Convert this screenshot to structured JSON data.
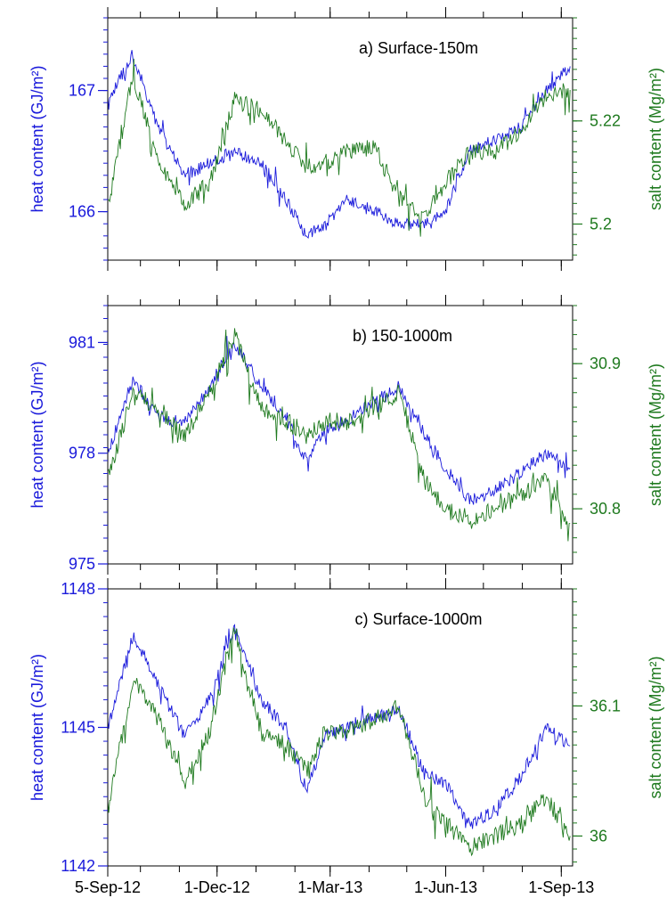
{
  "colors": {
    "heat": "#1a1adb",
    "salt": "#1f7a1f",
    "axis": "#000000"
  },
  "x_axis": {
    "tick_labels": [
      "5-Sep-12",
      "1-Dec-12",
      "1-Mar-13",
      "1-Jun-13",
      "1-Sep-13"
    ],
    "range": [
      "2012-09-05",
      "2013-09-10"
    ]
  },
  "chart_data": [
    {
      "type": "line",
      "title": "a) Surface-150m",
      "ylabel_left": "heat content (GJ/m²)",
      "ylabel_right": "salt content (Mg/m²)",
      "left_ticks": [
        "166",
        "167"
      ],
      "right_ticks": [
        "5.2",
        "5.22"
      ],
      "ylim_left": [
        165.6,
        167.6
      ],
      "ylim_right": [
        5.193,
        5.24
      ],
      "series": [
        {
          "axis": "left",
          "x": [
            "2012-09-05",
            "2012-09-25",
            "2012-10-15",
            "2012-11-05",
            "2012-11-25",
            "2012-12-15",
            "2013-01-05",
            "2013-01-25",
            "2013-02-10",
            "2013-02-25",
            "2013-03-15",
            "2013-04-05",
            "2013-04-25",
            "2013-05-15",
            "2013-06-01",
            "2013-06-20",
            "2013-07-10",
            "2013-08-01",
            "2013-08-20",
            "2013-09-08"
          ],
          "y": [
            166.9,
            167.3,
            166.7,
            166.3,
            166.4,
            166.5,
            166.4,
            166.1,
            165.8,
            165.9,
            166.1,
            166.0,
            165.9,
            165.9,
            166.0,
            166.5,
            166.6,
            166.7,
            167.0,
            167.2
          ]
        },
        {
          "axis": "right",
          "x": [
            "2012-09-05",
            "2012-09-25",
            "2012-10-15",
            "2012-11-05",
            "2012-11-25",
            "2012-12-15",
            "2013-01-05",
            "2013-01-25",
            "2013-02-10",
            "2013-02-25",
            "2013-03-15",
            "2013-04-05",
            "2013-04-25",
            "2013-05-15",
            "2013-06-01",
            "2013-06-20",
            "2013-07-10",
            "2013-08-01",
            "2013-08-20",
            "2013-09-08"
          ],
          "y": [
            5.203,
            5.229,
            5.212,
            5.204,
            5.208,
            5.224,
            5.222,
            5.216,
            5.211,
            5.212,
            5.214,
            5.215,
            5.205,
            5.201,
            5.208,
            5.214,
            5.214,
            5.218,
            5.225,
            5.226
          ]
        }
      ]
    },
    {
      "type": "line",
      "title": "b) 150-1000m",
      "ylabel_left": "heat content (GJ/m²)",
      "ylabel_right": "salt content (Mg/m²)",
      "left_ticks": [
        "975",
        "978",
        "981"
      ],
      "right_ticks": [
        "30.8",
        "30.9"
      ],
      "ylim_left": [
        975,
        982
      ],
      "ylim_right": [
        30.762,
        30.94
      ],
      "series": [
        {
          "axis": "left",
          "x": [
            "2012-09-05",
            "2012-09-25",
            "2012-10-15",
            "2012-11-05",
            "2012-11-25",
            "2012-12-15",
            "2013-01-05",
            "2013-01-25",
            "2013-02-10",
            "2013-02-25",
            "2013-03-15",
            "2013-04-05",
            "2013-04-25",
            "2013-05-15",
            "2013-06-01",
            "2013-06-20",
            "2013-07-10",
            "2013-08-01",
            "2013-08-20",
            "2013-09-08"
          ],
          "y": [
            978.0,
            980.0,
            979.0,
            978.8,
            979.8,
            981.0,
            979.8,
            979.0,
            977.8,
            978.6,
            978.9,
            979.4,
            979.8,
            978.5,
            977.6,
            976.7,
            977.0,
            977.5,
            978.0,
            977.6
          ]
        },
        {
          "axis": "right",
          "x": [
            "2012-09-05",
            "2012-09-25",
            "2012-10-15",
            "2012-11-05",
            "2012-11-25",
            "2012-12-15",
            "2013-01-05",
            "2013-01-25",
            "2013-02-10",
            "2013-02-25",
            "2013-03-15",
            "2013-04-05",
            "2013-04-25",
            "2013-05-15",
            "2013-06-01",
            "2013-06-20",
            "2013-07-10",
            "2013-08-01",
            "2013-08-20",
            "2013-09-08"
          ],
          "y": [
            30.82,
            30.88,
            30.87,
            30.85,
            30.88,
            30.92,
            30.87,
            30.86,
            30.85,
            30.86,
            30.86,
            30.87,
            30.88,
            30.82,
            30.8,
            30.79,
            30.8,
            30.81,
            30.82,
            30.79
          ]
        }
      ]
    },
    {
      "type": "line",
      "title": "c) Surface-1000m",
      "ylabel_left": "heat content (GJ/m²)",
      "ylabel_right": "salt content (Mg/m²)",
      "left_ticks": [
        "1142",
        "1145",
        "1148"
      ],
      "right_ticks": [
        "36",
        "36.1"
      ],
      "ylim_left": [
        1142,
        1148
      ],
      "ylim_right": [
        35.977,
        36.19
      ],
      "series": [
        {
          "axis": "left",
          "x": [
            "2012-09-05",
            "2012-09-25",
            "2012-10-15",
            "2012-11-05",
            "2012-11-25",
            "2012-12-15",
            "2013-01-05",
            "2013-01-25",
            "2013-02-10",
            "2013-02-25",
            "2013-03-15",
            "2013-04-05",
            "2013-04-25",
            "2013-05-15",
            "2013-06-01",
            "2013-06-20",
            "2013-07-10",
            "2013-08-01",
            "2013-08-20",
            "2013-09-08"
          ],
          "y": [
            1145.0,
            1147.0,
            1146.0,
            1144.8,
            1145.6,
            1147.2,
            1145.6,
            1145.0,
            1143.6,
            1144.8,
            1145.0,
            1145.2,
            1145.4,
            1144.0,
            1143.8,
            1142.9,
            1143.2,
            1144.0,
            1145.0,
            1144.6
          ]
        },
        {
          "axis": "right",
          "x": [
            "2012-09-05",
            "2012-09-25",
            "2012-10-15",
            "2012-11-05",
            "2012-11-25",
            "2012-12-15",
            "2013-01-05",
            "2013-01-25",
            "2013-02-10",
            "2013-02-25",
            "2013-03-15",
            "2013-04-05",
            "2013-04-25",
            "2013-05-15",
            "2013-06-01",
            "2013-06-20",
            "2013-07-10",
            "2013-08-01",
            "2013-08-20",
            "2013-09-08"
          ],
          "y": [
            36.02,
            36.12,
            36.09,
            36.04,
            36.08,
            36.16,
            36.08,
            36.07,
            36.05,
            36.08,
            36.08,
            36.09,
            36.1,
            36.03,
            36.01,
            35.99,
            36.0,
            36.01,
            36.03,
            36.0
          ]
        }
      ]
    }
  ]
}
